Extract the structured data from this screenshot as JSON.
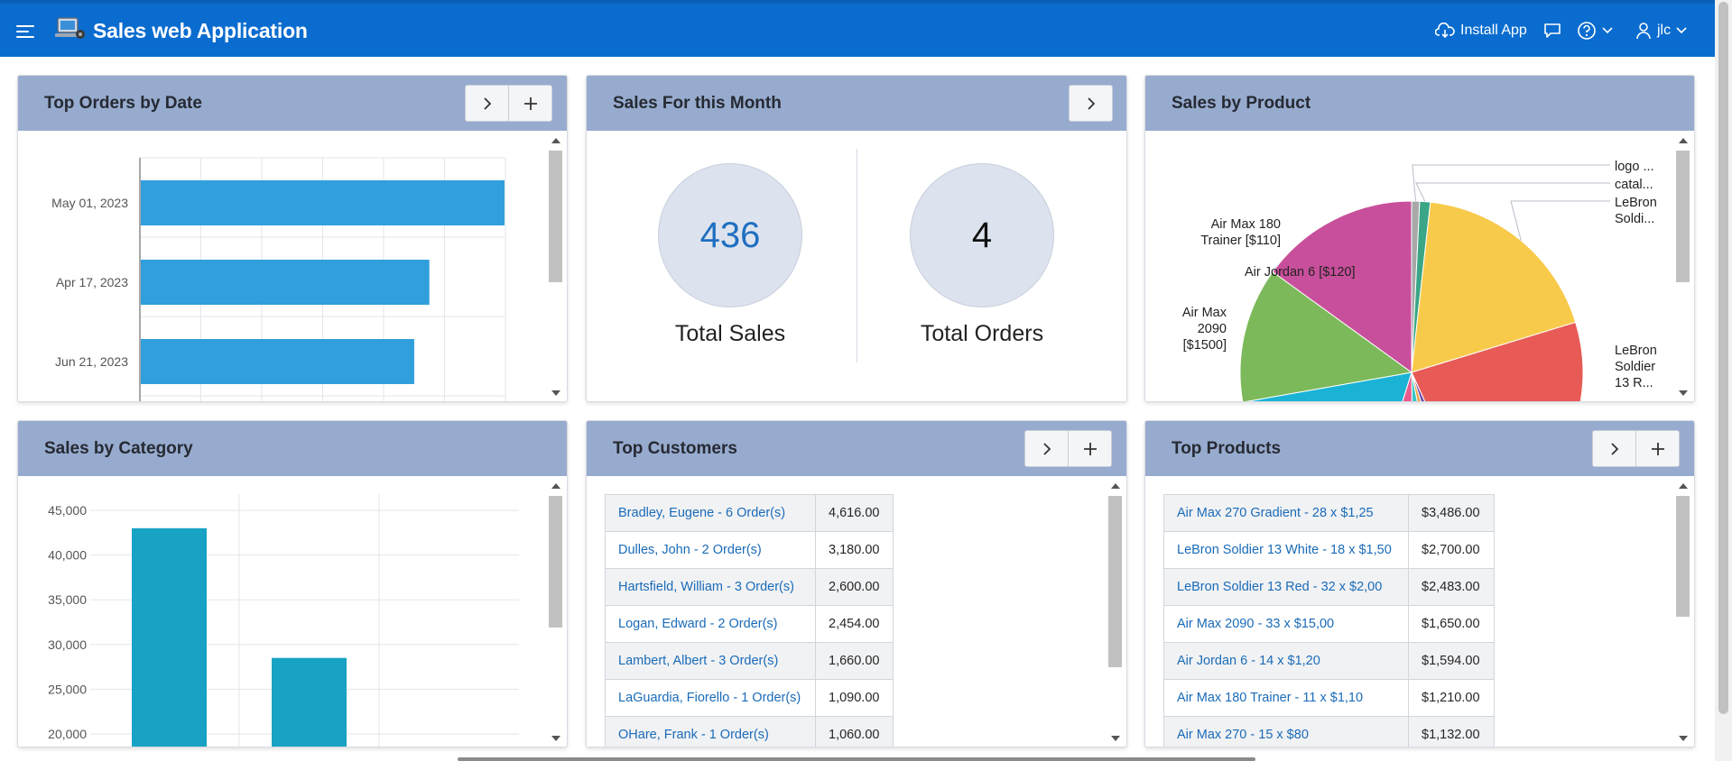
{
  "header": {
    "title": "Sales web Application",
    "install_app": "Install App",
    "user": "jlc",
    "color": "#0a6ccf"
  },
  "regions": {
    "top_orders": {
      "title": "Top Orders by Date"
    },
    "sales_month": {
      "title": "Sales For this Month",
      "total_sales_value": "436",
      "total_sales_label": "Total Sales",
      "total_orders_value": "4",
      "total_orders_label": "Total Orders"
    },
    "sales_product": {
      "title": "Sales by Product"
    },
    "sales_category": {
      "title": "Sales by Category"
    },
    "top_customers": {
      "title": "Top Customers",
      "rows": [
        {
          "name": "Bradley, Eugene - 6 Order(s)",
          "value": "4,616.00"
        },
        {
          "name": "Dulles, John - 2 Order(s)",
          "value": "3,180.00"
        },
        {
          "name": "Hartsfield, William - 3 Order(s)",
          "value": "2,600.00"
        },
        {
          "name": "Logan, Edward - 2 Order(s)",
          "value": "2,454.00"
        },
        {
          "name": "Lambert, Albert - 3 Order(s)",
          "value": "1,660.00"
        },
        {
          "name": "LaGuardia, Fiorello - 1 Order(s)",
          "value": "1,090.00"
        },
        {
          "name": "OHare, Frank - 1 Order(s)",
          "value": "1,060.00"
        }
      ]
    },
    "top_products": {
      "title": "Top Products",
      "rows": [
        {
          "name": "Air Max 270 Gradient - 28 x $1,25",
          "value": "$3,486.00"
        },
        {
          "name": "LeBron Soldier 13 White - 18 x $1,50",
          "value": "$2,700.00"
        },
        {
          "name": "LeBron Soldier 13 Red - 32 x $2,00",
          "value": "$2,483.00"
        },
        {
          "name": "Air Max 2090 - 33 x $15,00",
          "value": "$1,650.00"
        },
        {
          "name": "Air Jordan 6 - 14 x $1,20",
          "value": "$1,594.00"
        },
        {
          "name": "Air Max 180 Trainer - 11 x $1,10",
          "value": "$1,210.00"
        },
        {
          "name": "Air Max 270 - 15 x $80",
          "value": "$1,132.00"
        }
      ]
    }
  },
  "chart_data": [
    {
      "type": "bar",
      "orientation": "horizontal",
      "categories": [
        "May 01, 2023",
        "Apr 17, 2023",
        "Jun 21, 2023"
      ],
      "values": [
        600,
        476,
        451
      ],
      "xlim": [
        0,
        600
      ],
      "grid": true,
      "color": "#309fdb"
    },
    {
      "type": "pie",
      "labels": [
        "logo ...",
        "catal...",
        "LeBron Soldi...",
        "LeBron Soldier 13 R...",
        "",
        "",
        "",
        "",
        "Air Max 2090 [$1500]",
        "Air Max 180 Trainer [$110]",
        "Air Jordan 6 [$120]"
      ],
      "values": [
        0.6,
        0.8,
        14.8,
        18.3,
        1.5,
        1.5,
        2.3,
        4.0,
        13.9,
        10.2,
        12.0
      ],
      "colors": [
        "#a8a8a8",
        "#3aa686",
        "#f8ca4a",
        "#e75a55",
        "#6a4ca7",
        "#f0a03a",
        "#39c6c9",
        "#ea5a8c",
        "#1ab3d6",
        "#7cb95a",
        "#c84f9b",
        "#dadd4f"
      ]
    },
    {
      "type": "bar",
      "categories": [
        "",
        ""
      ],
      "values": [
        43000,
        28500
      ],
      "yticks": [
        "45,000",
        "40,000",
        "35,000",
        "30,000",
        "25,000",
        "20,000"
      ],
      "ylim": [
        20000,
        45000
      ],
      "grid": true,
      "color": "#18a2c4"
    }
  ]
}
